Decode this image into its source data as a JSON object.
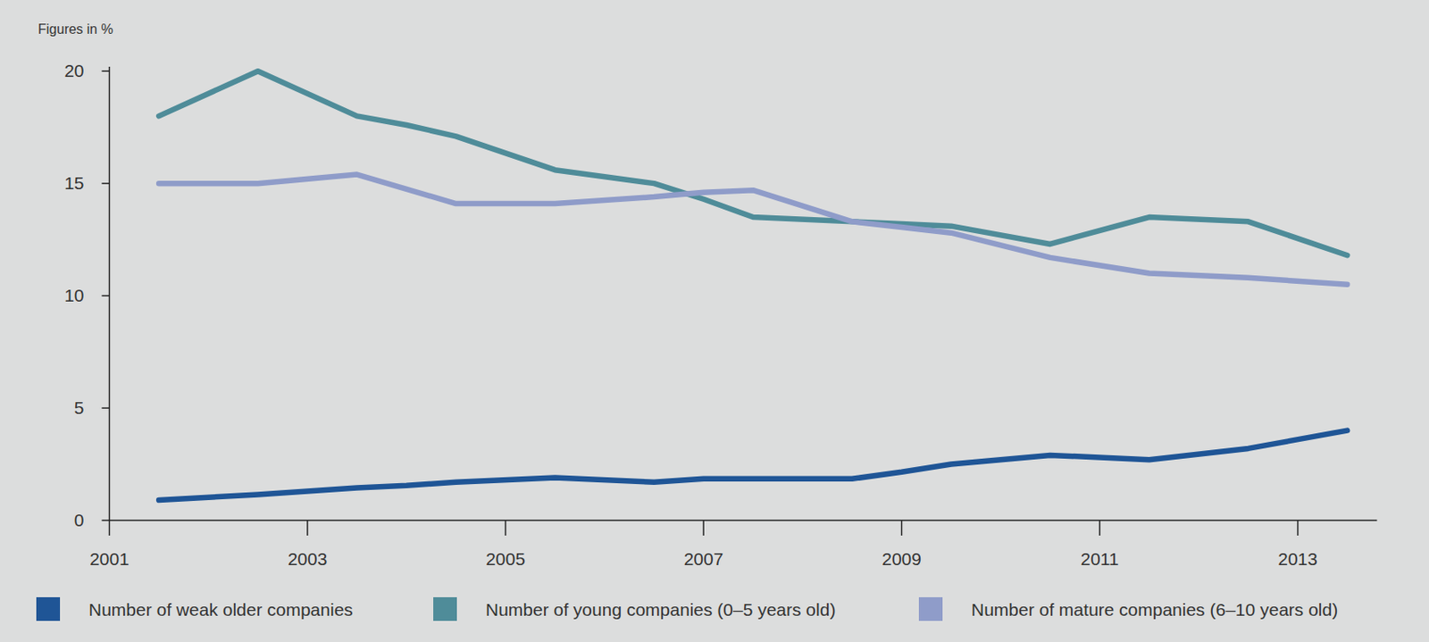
{
  "chart_data": {
    "type": "line",
    "y_label": "Figures in %",
    "x": [
      2001.5,
      2002.5,
      2003.5,
      2004,
      2004.5,
      2005.5,
      2006.5,
      2007,
      2007.5,
      2008.5,
      2009,
      2009.5,
      2010.5,
      2011.5,
      2012.5,
      2013.5
    ],
    "xlim": [
      2001,
      2013.8
    ],
    "xticks": [
      2001,
      2003,
      2005,
      2007,
      2009,
      2011,
      2013
    ],
    "ylim": [
      0,
      20.2
    ],
    "yticks": [
      0,
      5,
      10,
      15,
      20
    ],
    "grid": false,
    "legend": "bottom",
    "series": [
      {
        "name": "Number of weak older companies",
        "color": "#1f5596",
        "values": [
          0.9,
          1.15,
          1.45,
          1.55,
          1.7,
          1.9,
          1.7,
          1.85,
          1.85,
          1.85,
          2.15,
          2.5,
          2.9,
          2.7,
          3.2,
          4.0
        ]
      },
      {
        "name": "Number of young companies (0–5 years old)",
        "color": "#4f8c99",
        "values": [
          18,
          20,
          18,
          17.6,
          17.1,
          15.6,
          15.0,
          14.3,
          13.5,
          13.3,
          13.2,
          13.1,
          12.3,
          13.5,
          13.3,
          11.8
        ]
      },
      {
        "name": "Number of mature companies (6–10 years old)",
        "color": "#8f9cc9",
        "values": [
          15,
          15,
          15.4,
          14.75,
          14.1,
          14.1,
          14.4,
          14.6,
          14.7,
          13.3,
          13.05,
          12.8,
          11.7,
          11.0,
          10.8,
          10.5
        ]
      }
    ]
  }
}
